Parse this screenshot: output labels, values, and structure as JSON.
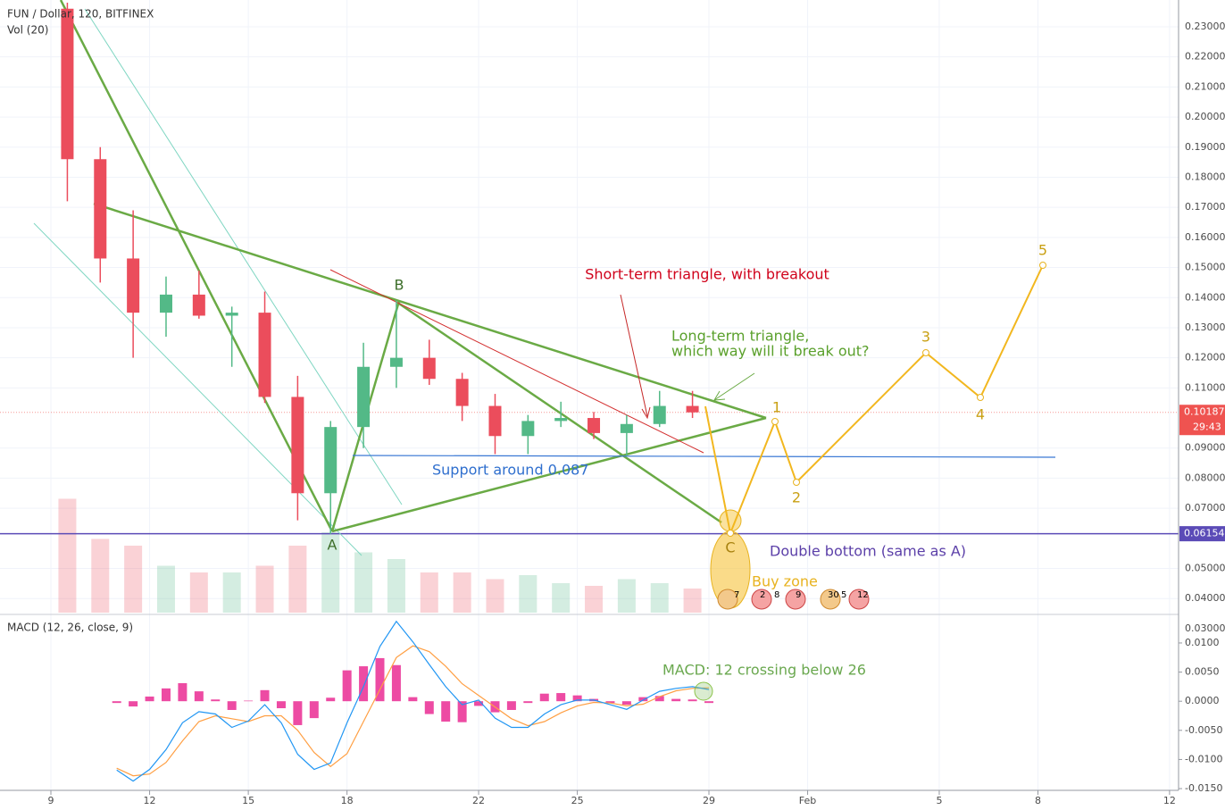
{
  "chart_data": {
    "type": "candlestick",
    "title": "FUN / Dollar, 120, BITFINEX",
    "up_color": "#53b987",
    "down_color": "#eb4d5c",
    "grid": true,
    "x": [
      9.5,
      10.5,
      11.5,
      12.5,
      13.5,
      14.5,
      15.5,
      16.5,
      17.5,
      18.5,
      19.5,
      20.5,
      21.5,
      22.5,
      23.5,
      24.5,
      25.5,
      26.5,
      27.5,
      28.5
    ],
    "open": [
      0.236,
      0.186,
      0.153,
      0.135,
      0.141,
      0.134,
      0.135,
      0.107,
      0.075,
      0.097,
      0.117,
      0.12,
      0.113,
      0.104,
      0.094,
      0.099,
      0.1,
      0.095,
      0.098,
      0.104
    ],
    "high": [
      0.238,
      0.19,
      0.169,
      0.147,
      0.149,
      0.137,
      0.142,
      0.114,
      0.099,
      0.125,
      0.139,
      0.126,
      0.115,
      0.108,
      0.101,
      0.1054,
      0.102,
      0.101,
      0.109,
      0.109
    ],
    "low": [
      0.172,
      0.145,
      0.12,
      0.127,
      0.133,
      0.117,
      0.105,
      0.066,
      0.0615,
      0.09,
      0.11,
      0.111,
      0.099,
      0.088,
      0.088,
      0.097,
      0.093,
      0.0875,
      0.097,
      0.1
    ],
    "close": [
      0.186,
      0.153,
      0.135,
      0.141,
      0.134,
      0.135,
      0.107,
      0.075,
      0.097,
      0.117,
      0.12,
      0.113,
      0.104,
      0.094,
      0.099,
      0.1,
      0.095,
      0.098,
      0.104,
      0.10187
    ],
    "xlim": [
      7.453,
      43.274
    ],
    "xticks": [
      9,
      12,
      15,
      18,
      22,
      25,
      29,
      {
        "value": 32,
        "label": "Feb"
      },
      {
        "value": 36,
        "label": "5"
      },
      {
        "value": 39,
        "label": "8"
      },
      {
        "value": 43,
        "label": "12"
      }
    ],
    "ylim": [
      0.0276,
      0.2389
    ],
    "yticks": [
      {
        "value": 0.03,
        "label": "0.03000"
      },
      {
        "value": 0.04,
        "label": "0.04000"
      },
      {
        "value": 0.05,
        "label": "0.05000"
      },
      {
        "value": 0.07,
        "label": "0.07000"
      },
      {
        "value": 0.08,
        "label": "0.08000"
      },
      {
        "value": 0.09,
        "label": "0.09000"
      },
      {
        "value": 0.11,
        "label": "0.11000"
      },
      {
        "value": 0.12,
        "label": "0.12000"
      },
      {
        "value": 0.13,
        "label": "0.13000"
      },
      {
        "value": 0.14,
        "label": "0.14000"
      },
      {
        "value": 0.15,
        "label": "0.15000"
      },
      {
        "value": 0.16,
        "label": "0.16000"
      },
      {
        "value": 0.17,
        "label": "0.17000"
      },
      {
        "value": 0.18,
        "label": "0.18000"
      },
      {
        "value": 0.19,
        "label": "0.19000"
      },
      {
        "value": 0.2,
        "label": "0.20000"
      },
      {
        "value": 0.21,
        "label": "0.21000"
      },
      {
        "value": 0.22,
        "label": "0.22000"
      },
      {
        "value": 0.23,
        "label": "0.23000"
      }
    ],
    "price_markers": [
      {
        "value": 0.10187,
        "label": "0.10187",
        "color": "#ef5350"
      },
      {
        "value": 0.06154,
        "label": "0.06154",
        "color": "#5b4bb7"
      }
    ],
    "countdown": "29:43",
    "volume": {
      "name": "Vol (20)",
      "ylim": [
        0,
        100
      ],
      "values": [
        85,
        55,
        50,
        35,
        30,
        30,
        35,
        50,
        60,
        45,
        40,
        30,
        30,
        25,
        28,
        22,
        20,
        25,
        22,
        18
      ]
    },
    "macd": {
      "name": "MACD (12, 26, close, 9)",
      "ylim": [
        -0.0153,
        0.0149
      ],
      "yticks": [
        {
          "value": 0.01,
          "label": "0.0100"
        },
        {
          "value": 0.005,
          "label": "0.0050"
        },
        {
          "value": 0,
          "label": "0.0000"
        },
        {
          "value": -0.005,
          "label": "-0.0050"
        },
        {
          "value": -0.01,
          "label": "-0.0100"
        },
        {
          "value": -0.015,
          "label": "-0.0150"
        }
      ],
      "x": [
        11,
        11.5,
        12,
        12.5,
        13,
        13.5,
        14,
        14.5,
        15,
        15.5,
        16,
        16.5,
        17,
        17.5,
        18,
        18.5,
        19,
        19.5,
        20,
        20.5,
        21,
        21.5,
        22,
        22.5,
        23,
        23.5,
        24,
        24.5,
        25,
        25.5,
        26,
        26.5,
        27,
        27.5,
        28,
        28.5,
        29
      ],
      "macd_line": {
        "color": "#2196f3",
        "values": [
          -0.0118,
          -0.0137,
          -0.0117,
          -0.0083,
          -0.0037,
          -0.0018,
          -0.0022,
          -0.0045,
          -0.0034,
          -0.0006,
          -0.0037,
          -0.0091,
          -0.0117,
          -0.0106,
          -0.0037,
          0.0025,
          0.0094,
          0.0137,
          0.0102,
          0.0063,
          0.0025,
          -0.0006,
          0.0002,
          -0.0029,
          -0.0045,
          -0.0045,
          -0.0022,
          -0.0006,
          0.0002,
          0.0002,
          -0.0006,
          -0.0014,
          0.0002,
          0.0017,
          0.0022,
          0.0025,
          0.002
        ]
      },
      "signal_line": {
        "color": "#ff9f43",
        "values": [
          -0.0115,
          -0.0128,
          -0.0125,
          -0.0105,
          -0.0068,
          -0.0035,
          -0.0025,
          -0.003,
          -0.0035,
          -0.0025,
          -0.0025,
          -0.005,
          -0.0088,
          -0.0112,
          -0.009,
          -0.0035,
          0.002,
          0.0075,
          0.0095,
          0.0085,
          0.006,
          0.003,
          0.001,
          -0.001,
          -0.003,
          -0.0042,
          -0.0035,
          -0.002,
          -0.0008,
          -0.0002,
          -0.0003,
          -0.0008,
          -0.0005,
          0.0008,
          0.0018,
          0.0022,
          0.0023
        ]
      },
      "histogram": {
        "color": "#e91e8c",
        "values": [
          -0.0003,
          -0.0009,
          0.0008,
          0.0022,
          0.0031,
          0.0017,
          0.0003,
          -0.0015,
          0.0001,
          0.0019,
          -0.0012,
          -0.0041,
          -0.0029,
          0.0006,
          0.0053,
          0.006,
          0.0074,
          0.0062,
          0.0007,
          -0.0022,
          -0.0035,
          -0.0036,
          -0.0008,
          -0.0019,
          -0.0015,
          -0.0003,
          0.0013,
          0.0014,
          0.001,
          0.0004,
          -0.0003,
          -0.0006,
          0.0007,
          0.0009,
          0.0004,
          0.0003,
          -0.0003
        ]
      }
    },
    "annotations": {
      "a": "A",
      "b": "B",
      "c": "C",
      "w1": "1",
      "w2": "2",
      "w3": "3",
      "w4": "4",
      "w5": "5",
      "short_triangle": "Short-term triangle, with breakout",
      "long_triangle_1": "Long-term triangle,",
      "long_triangle_2": "which way will it break out?",
      "support": "Support around 0.087",
      "double_bottom": "Double bottom (same as A)",
      "buy_zone": "Buy zone",
      "macd_note": "MACD: 12 crossing below 26"
    },
    "events": [
      "7",
      "2",
      "8",
      "9",
      "30",
      "5",
      "12"
    ]
  }
}
